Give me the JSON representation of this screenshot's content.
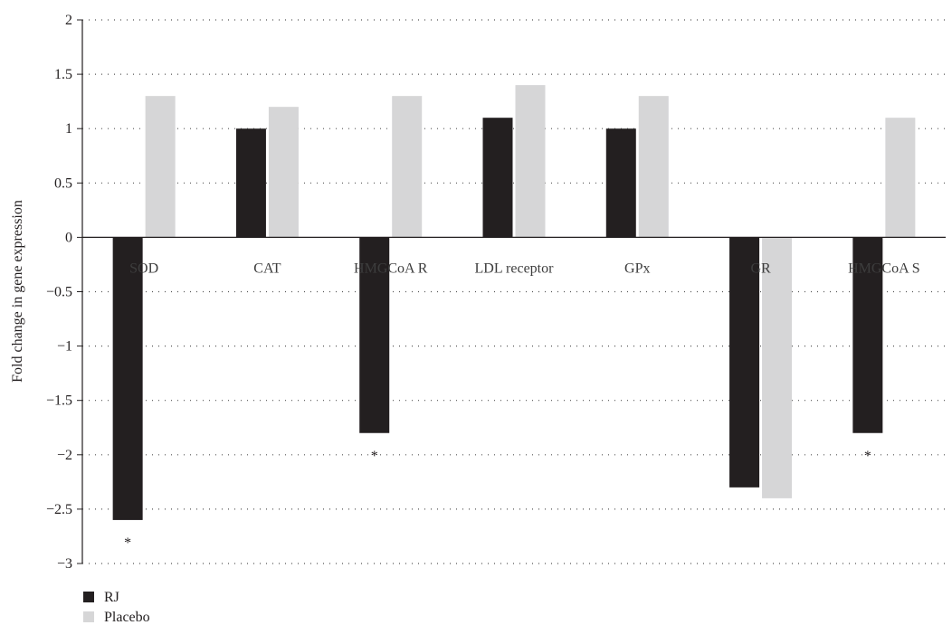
{
  "chart_data": {
    "type": "bar",
    "title": "",
    "xlabel": "",
    "ylabel": "Fold change in gene expression",
    "ylim": [
      -3,
      2
    ],
    "yticks": [
      2,
      1.5,
      1,
      0.5,
      0,
      -0.5,
      -1,
      -1.5,
      -2,
      -2.5,
      -3
    ],
    "ytick_labels": [
      "2",
      "1.5",
      "1",
      "0.5",
      "0",
      "−0.5",
      "−1",
      "−1.5",
      "−2",
      "−2.5",
      "−3"
    ],
    "categories": [
      "SOD",
      "CAT",
      "HMGCoA R",
      "LDL receptor",
      "GPx",
      "GR",
      "HMGCoA S"
    ],
    "series": [
      {
        "name": "RJ",
        "color": "#231f20",
        "values": [
          -2.6,
          1.0,
          -1.8,
          1.1,
          1.0,
          -2.3,
          -1.8
        ]
      },
      {
        "name": "Placebo",
        "color": "#d6d6d7",
        "values": [
          1.3,
          1.2,
          1.3,
          1.4,
          1.3,
          -2.4,
          1.1
        ]
      }
    ],
    "annotations": [
      {
        "category": "SOD",
        "text": "*"
      },
      {
        "category": "HMGCoA R",
        "text": "*"
      },
      {
        "category": "HMGCoA S",
        "text": "*"
      }
    ],
    "grid": "dotted-horizontal",
    "legend_position": "bottom-left"
  }
}
